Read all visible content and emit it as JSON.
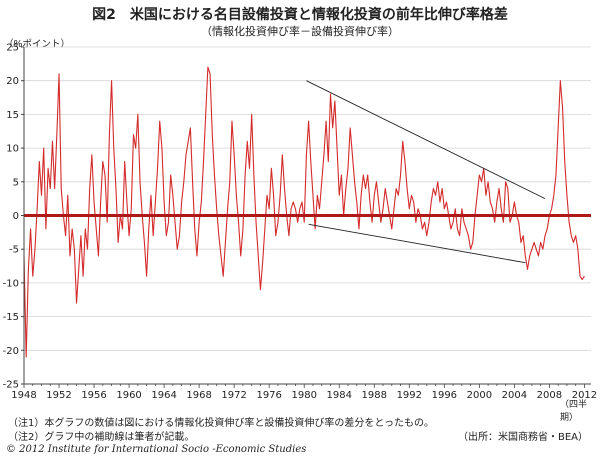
{
  "title": "図2　米国における名目設備投資と情報化投資の前年比伸び率格差",
  "subtitle": "（情報化投資伸び率－設備投資伸び率）",
  "y_unit": "（%ポイント）",
  "x_unit": "（四半期）",
  "notes": [
    "（注1）本グラフの数値は図における情報化投資伸び率と設備投資伸び率の差分をとったもの。",
    "（注2）グラフ中の補助線は筆者が記載。"
  ],
  "source": "（出所：米国商務省・BEA）",
  "copyright": "© 2012 Institute for International Socio -Economic Studies",
  "colors": {
    "series": "#d42a2a",
    "zero_line": "#b01818",
    "helper_line": "#222222",
    "axis": "#444444"
  },
  "chart_data": {
    "type": "line",
    "title": "図2　米国における名目設備投資と情報化投資の前年比伸び率格差",
    "subtitle": "（情報化投資伸び率－設備投資伸び率）",
    "xlabel": "（四半期）",
    "ylabel": "（%ポイント）",
    "xlim": [
      1948,
      2012.75
    ],
    "ylim": [
      -25,
      25
    ],
    "x_ticks": [
      1948,
      1952,
      1956,
      1960,
      1964,
      1968,
      1972,
      1976,
      1980,
      1984,
      1988,
      1992,
      1996,
      2000,
      2004,
      2008,
      2012
    ],
    "y_ticks": [
      25,
      20,
      15,
      10,
      5,
      0,
      -5,
      -10,
      -15,
      -20,
      -25
    ],
    "grid": "horizontal",
    "zero_line": true,
    "series": [
      {
        "keypoints": [
          [
            1948.0,
            -6
          ],
          [
            1948.25,
            -21
          ],
          [
            1948.5,
            -8
          ],
          [
            1948.75,
            -2
          ],
          [
            1949.0,
            -9
          ],
          [
            1949.25,
            -5
          ],
          [
            1949.5,
            1
          ],
          [
            1949.75,
            8
          ],
          [
            1950.0,
            3
          ],
          [
            1950.25,
            10
          ],
          [
            1950.5,
            -2
          ],
          [
            1950.75,
            7
          ],
          [
            1951.0,
            4
          ],
          [
            1951.25,
            11
          ],
          [
            1951.5,
            4
          ],
          [
            1951.75,
            12
          ],
          [
            1952.0,
            21
          ],
          [
            1952.25,
            4
          ],
          [
            1952.5,
            0
          ],
          [
            1952.75,
            -3
          ],
          [
            1953.0,
            3
          ],
          [
            1953.25,
            -6
          ],
          [
            1953.5,
            -2
          ],
          [
            1953.75,
            -5
          ],
          [
            1954.0,
            -13
          ],
          [
            1954.25,
            -8
          ],
          [
            1954.5,
            -3
          ],
          [
            1954.75,
            -9
          ],
          [
            1955.0,
            -2
          ],
          [
            1955.25,
            -5
          ],
          [
            1955.5,
            4
          ],
          [
            1955.75,
            9
          ],
          [
            1956.0,
            2
          ],
          [
            1956.25,
            -2
          ],
          [
            1956.5,
            -6
          ],
          [
            1956.75,
            2
          ],
          [
            1957.0,
            8
          ],
          [
            1957.25,
            6
          ],
          [
            1957.5,
            -1
          ],
          [
            1957.75,
            12
          ],
          [
            1958.0,
            20
          ],
          [
            1958.25,
            10
          ],
          [
            1958.5,
            4
          ],
          [
            1958.75,
            -4
          ],
          [
            1959.0,
            0
          ],
          [
            1959.25,
            -2
          ],
          [
            1959.5,
            8
          ],
          [
            1959.75,
            2
          ],
          [
            1960.0,
            -3
          ],
          [
            1960.25,
            1
          ],
          [
            1960.5,
            12
          ],
          [
            1960.75,
            10
          ],
          [
            1961.0,
            15
          ],
          [
            1961.25,
            5
          ],
          [
            1961.5,
            0
          ],
          [
            1961.75,
            -4
          ],
          [
            1962.0,
            -9
          ],
          [
            1962.25,
            -2
          ],
          [
            1962.5,
            3
          ],
          [
            1962.75,
            -3
          ],
          [
            1963.0,
            2
          ],
          [
            1963.25,
            7
          ],
          [
            1963.5,
            14
          ],
          [
            1963.75,
            10
          ],
          [
            1964.0,
            2
          ],
          [
            1964.25,
            -3
          ],
          [
            1964.5,
            -1
          ],
          [
            1964.75,
            6
          ],
          [
            1965.0,
            3
          ],
          [
            1965.25,
            -1
          ],
          [
            1965.5,
            -5
          ],
          [
            1965.75,
            -3
          ],
          [
            1966.0,
            2
          ],
          [
            1966.25,
            5
          ],
          [
            1966.5,
            9
          ],
          [
            1966.75,
            11
          ],
          [
            1967.0,
            13
          ],
          [
            1967.25,
            5
          ],
          [
            1967.5,
            -2
          ],
          [
            1967.75,
            -6
          ],
          [
            1968.0,
            -1
          ],
          [
            1968.25,
            2
          ],
          [
            1968.5,
            8
          ],
          [
            1968.75,
            15
          ],
          [
            1969.0,
            22
          ],
          [
            1969.25,
            21
          ],
          [
            1969.5,
            12
          ],
          [
            1969.75,
            6
          ],
          [
            1970.0,
            1
          ],
          [
            1970.25,
            -3
          ],
          [
            1970.5,
            -6
          ],
          [
            1970.75,
            -9
          ],
          [
            1971.0,
            -4
          ],
          [
            1971.25,
            1
          ],
          [
            1971.5,
            5
          ],
          [
            1971.75,
            14
          ],
          [
            1972.0,
            9
          ],
          [
            1972.25,
            3
          ],
          [
            1972.5,
            -1
          ],
          [
            1972.75,
            -6
          ],
          [
            1973.0,
            -2
          ],
          [
            1973.25,
            6
          ],
          [
            1973.5,
            11
          ],
          [
            1973.75,
            7
          ],
          [
            1974.0,
            15
          ],
          [
            1974.25,
            6
          ],
          [
            1974.5,
            -1
          ],
          [
            1974.75,
            -6
          ],
          [
            1975.0,
            -11
          ],
          [
            1975.25,
            -7
          ],
          [
            1975.5,
            -2
          ],
          [
            1975.75,
            3
          ],
          [
            1976.0,
            1
          ],
          [
            1976.25,
            7
          ],
          [
            1976.5,
            3
          ],
          [
            1976.75,
            -3
          ],
          [
            1977.0,
            -1
          ],
          [
            1977.25,
            3
          ],
          [
            1977.5,
            9
          ],
          [
            1977.75,
            4
          ],
          [
            1978.0,
            0
          ],
          [
            1978.25,
            -3
          ],
          [
            1978.5,
            1
          ],
          [
            1978.75,
            2
          ],
          [
            1979.0,
            1
          ],
          [
            1979.25,
            -1
          ],
          [
            1979.5,
            1
          ],
          [
            1979.75,
            2
          ],
          [
            1980.0,
            -1
          ],
          [
            1980.25,
            9
          ],
          [
            1980.5,
            14
          ],
          [
            1980.75,
            8
          ],
          [
            1981.0,
            3
          ],
          [
            1981.25,
            -2
          ],
          [
            1981.5,
            3
          ],
          [
            1981.75,
            1
          ],
          [
            1982.0,
            5
          ],
          [
            1982.25,
            9
          ],
          [
            1982.5,
            14
          ],
          [
            1982.75,
            8
          ],
          [
            1983.0,
            18
          ],
          [
            1983.25,
            13
          ],
          [
            1983.5,
            17
          ],
          [
            1983.75,
            10
          ],
          [
            1984.0,
            3
          ],
          [
            1984.25,
            6
          ],
          [
            1984.5,
            0
          ],
          [
            1984.75,
            4
          ],
          [
            1985.0,
            7
          ],
          [
            1985.25,
            13
          ],
          [
            1985.5,
            9
          ],
          [
            1985.75,
            5
          ],
          [
            1986.0,
            2
          ],
          [
            1986.25,
            -2
          ],
          [
            1986.5,
            3
          ],
          [
            1986.75,
            6
          ],
          [
            1987.0,
            4
          ],
          [
            1987.25,
            6
          ],
          [
            1987.5,
            2
          ],
          [
            1987.75,
            -1
          ],
          [
            1988.0,
            3
          ],
          [
            1988.25,
            5
          ],
          [
            1988.5,
            2
          ],
          [
            1988.75,
            -1
          ],
          [
            1989.0,
            1
          ],
          [
            1989.25,
            4
          ],
          [
            1989.5,
            2
          ],
          [
            1989.75,
            0
          ],
          [
            1990.0,
            -2
          ],
          [
            1990.25,
            1
          ],
          [
            1990.5,
            4
          ],
          [
            1990.75,
            3
          ],
          [
            1991.0,
            6
          ],
          [
            1991.25,
            11
          ],
          [
            1991.5,
            8
          ],
          [
            1991.75,
            4
          ],
          [
            1992.0,
            1
          ],
          [
            1992.25,
            3
          ],
          [
            1992.5,
            2
          ],
          [
            1992.75,
            -1
          ],
          [
            1993.0,
            1
          ],
          [
            1993.25,
            0
          ],
          [
            1993.5,
            -2
          ],
          [
            1993.75,
            -1
          ],
          [
            1994.0,
            -3
          ],
          [
            1994.25,
            -1
          ],
          [
            1994.5,
            2
          ],
          [
            1994.75,
            4
          ],
          [
            1995.0,
            3
          ],
          [
            1995.25,
            5
          ],
          [
            1995.5,
            2
          ],
          [
            1995.75,
            4
          ],
          [
            1996.0,
            1
          ],
          [
            1996.25,
            2
          ],
          [
            1996.5,
            0
          ],
          [
            1996.75,
            -2
          ],
          [
            1997.0,
            -1
          ],
          [
            1997.25,
            1
          ],
          [
            1997.5,
            -2
          ],
          [
            1997.75,
            -3
          ],
          [
            1998.0,
            1
          ],
          [
            1998.25,
            -1
          ],
          [
            1998.5,
            -2
          ],
          [
            1998.75,
            -3
          ],
          [
            1999.0,
            -5
          ],
          [
            1999.25,
            -4
          ],
          [
            1999.5,
            0
          ],
          [
            1999.75,
            3
          ],
          [
            2000.0,
            6
          ],
          [
            2000.25,
            5
          ],
          [
            2000.5,
            7
          ],
          [
            2000.75,
            3
          ],
          [
            2001.0,
            5
          ],
          [
            2001.25,
            2
          ],
          [
            2001.5,
            1
          ],
          [
            2001.75,
            -1
          ],
          [
            2002.0,
            2
          ],
          [
            2002.25,
            4
          ],
          [
            2002.5,
            1
          ],
          [
            2002.75,
            -1
          ],
          [
            2003.0,
            5
          ],
          [
            2003.25,
            4
          ],
          [
            2003.5,
            -1
          ],
          [
            2003.75,
            0
          ],
          [
            2004.0,
            2
          ],
          [
            2004.25,
            0
          ],
          [
            2004.5,
            -1
          ],
          [
            2004.75,
            -4
          ],
          [
            2005.0,
            -3
          ],
          [
            2005.25,
            -6
          ],
          [
            2005.5,
            -8
          ],
          [
            2005.75,
            -6
          ],
          [
            2006.0,
            -5
          ],
          [
            2006.25,
            -4
          ],
          [
            2006.5,
            -5
          ],
          [
            2006.75,
            -6
          ],
          [
            2007.0,
            -4
          ],
          [
            2007.25,
            -5
          ],
          [
            2007.5,
            -3
          ],
          [
            2007.75,
            -2
          ],
          [
            2008.0,
            0
          ],
          [
            2008.25,
            1
          ],
          [
            2008.5,
            3
          ],
          [
            2008.75,
            6
          ],
          [
            2009.0,
            13
          ],
          [
            2009.25,
            20
          ],
          [
            2009.5,
            16
          ],
          [
            2009.75,
            8
          ],
          [
            2010.0,
            3
          ],
          [
            2010.25,
            -1
          ],
          [
            2010.5,
            -3
          ],
          [
            2010.75,
            -4
          ],
          [
            2011.0,
            -3
          ],
          [
            2011.25,
            -5
          ],
          [
            2011.5,
            -9
          ],
          [
            2011.75,
            -9.5
          ],
          [
            2012.0,
            -9
          ]
        ]
      }
    ],
    "helper_lines": [
      {
        "from": [
          1980.25,
          20
        ],
        "to": [
          2007.5,
          2.5
        ]
      },
      {
        "from": [
          1980.5,
          -1.3
        ],
        "to": [
          2005.25,
          -7
        ]
      }
    ]
  }
}
